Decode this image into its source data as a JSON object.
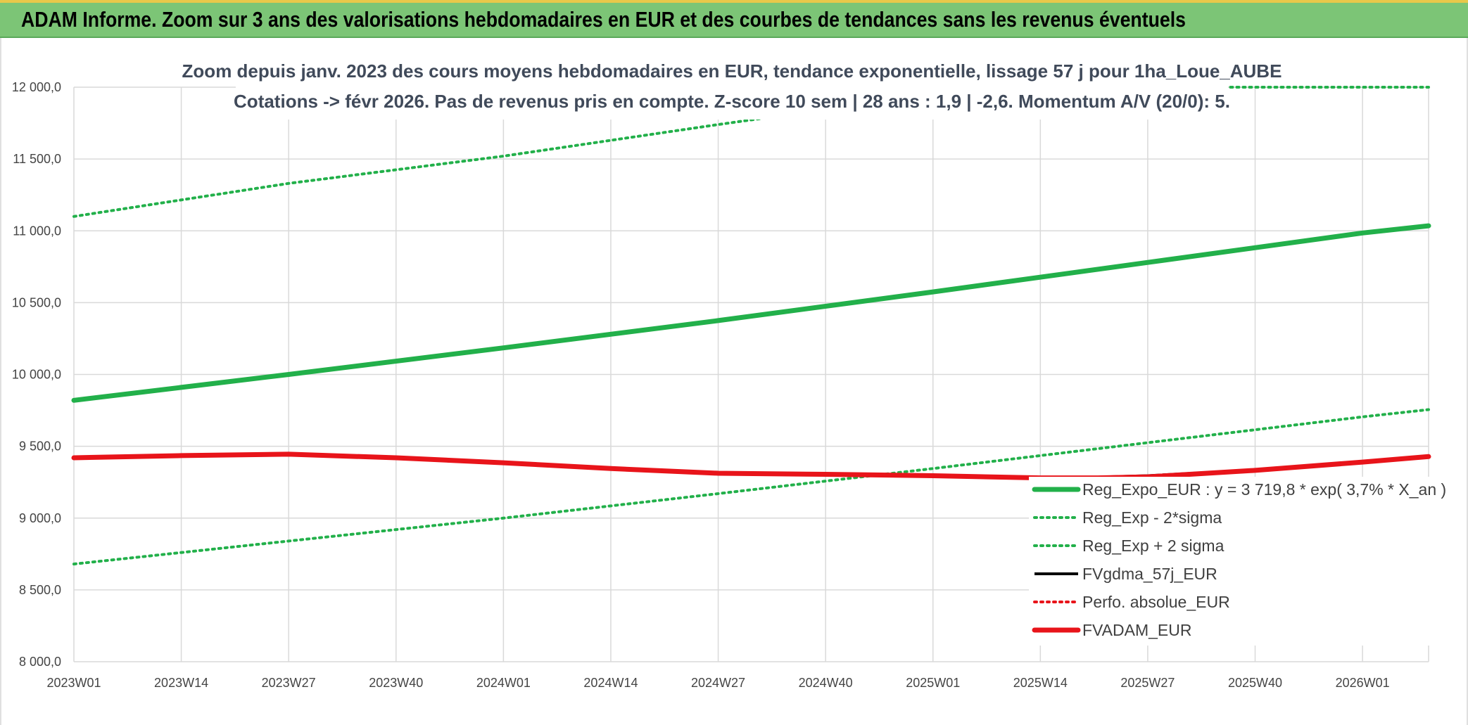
{
  "header": {
    "title": "ADAM Informe. Zoom sur 3 ans des valorisations hebdomadaires en EUR et des courbes de tendances sans les revenus éventuels"
  },
  "chart_data": {
    "type": "line",
    "title_line1": "Zoom depuis janv. 2023 des cours moyens hebdomadaires en EUR, tendance exponentielle, lissage 57 j pour 1ha_Loue_AUBE",
    "title_line2": "Cotations -> févr 2026. Pas de revenus pris en compte. Z-score 10 sem | 28 ans : 1,9 | -2,6. Momentum A/V (20/0): 5.",
    "ylim": [
      8000,
      12000
    ],
    "y_ticks": [
      "8 000,0",
      "8 500,0",
      "9 000,0",
      "9 500,0",
      "10 000,0",
      "10 500,0",
      "11 000,0",
      "11 500,0",
      "12 000,0"
    ],
    "y_tick_values": [
      8000,
      8500,
      9000,
      9500,
      10000,
      10500,
      11000,
      11500,
      12000
    ],
    "x_ticks": [
      "2023W01",
      "2023W14",
      "2023W27",
      "2023W40",
      "2024W01",
      "2024W14",
      "2024W27",
      "2024W40",
      "2025W01",
      "2025W14",
      "2025W27",
      "2025W40",
      "2026W01"
    ],
    "x_tick_index": [
      0,
      13,
      26,
      39,
      52,
      65,
      78,
      91,
      104,
      117,
      130,
      143,
      156
    ],
    "x_max_index": 164,
    "grid": true,
    "legend_placement": "bottom-right",
    "series": [
      {
        "name": "Reg_Expo_EUR : y = 3 719,8 * exp( 3,7% *  X_an )",
        "color": "#22b04a",
        "style": "solid-thick",
        "x": [
          0,
          26,
          52,
          78,
          104,
          130,
          156,
          164
        ],
        "values": [
          9820,
          10000,
          10185,
          10375,
          10575,
          10780,
          10985,
          11035
        ]
      },
      {
        "name": "Reg_Exp - 2*sigma",
        "color": "#22b04a",
        "style": "dotted",
        "x": [
          0,
          26,
          52,
          78,
          104,
          130,
          156,
          164
        ],
        "values": [
          8680,
          8840,
          9000,
          9170,
          9345,
          9525,
          9705,
          9755
        ]
      },
      {
        "name": "Reg_Exp + 2 sigma",
        "color": "#22b04a",
        "style": "dotted",
        "x": [
          0,
          26,
          52,
          78,
          104,
          130,
          156,
          164
        ],
        "values": [
          11100,
          11330,
          11520,
          11740,
          11950,
          12000,
          12000,
          12000
        ]
      },
      {
        "name": "FVgdma_57j_EUR",
        "color": "#000000",
        "style": "solid",
        "x": [
          0,
          13,
          26,
          39,
          52,
          65,
          78,
          91,
          104,
          117,
          124,
          130,
          143,
          156,
          164
        ],
        "values": [
          9420,
          9435,
          9450,
          9420,
          9385,
          9345,
          9310,
          9305,
          9295,
          9280,
          9285,
          9295,
          9335,
          9390,
          9425
        ]
      },
      {
        "name": "Perfo. absolue_EUR",
        "color": "#e8141a",
        "style": "dotted",
        "x": [
          0,
          13,
          26,
          39,
          52,
          65,
          78,
          91,
          104,
          117,
          124,
          130,
          143,
          156,
          164
        ],
        "values": [
          9420,
          9435,
          9450,
          9420,
          9385,
          9345,
          9310,
          9305,
          9295,
          9280,
          9280,
          9285,
          9330,
          9390,
          9425
        ]
      },
      {
        "name": "FVADAM_EUR",
        "color": "#e8141a",
        "style": "solid-thick",
        "x": [
          0,
          13,
          26,
          39,
          52,
          65,
          78,
          91,
          104,
          117,
          124,
          130,
          143,
          156,
          164
        ],
        "values": [
          9420,
          9435,
          9445,
          9420,
          9385,
          9345,
          9312,
          9305,
          9295,
          9280,
          9280,
          9287,
          9332,
          9390,
          9428
        ]
      }
    ]
  }
}
